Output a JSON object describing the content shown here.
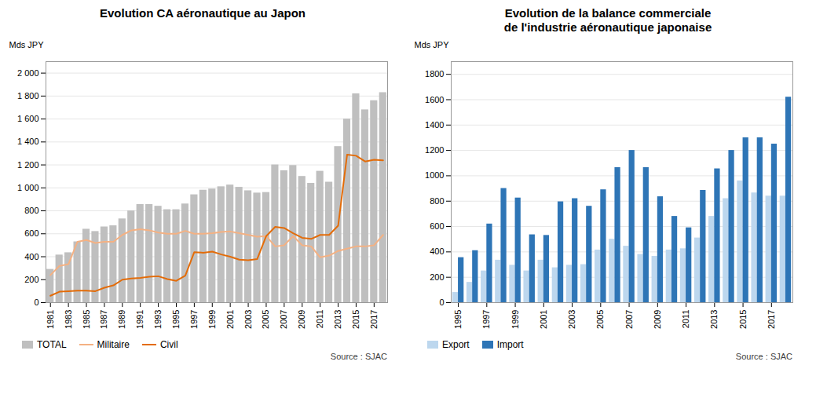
{
  "chart_data": [
    {
      "type": "bar",
      "title": "Evolution CA aéronautique au Japon",
      "ylabel": "Mds JPY",
      "source": "Source : SJAC",
      "categories": [
        "1981",
        null,
        "1983",
        null,
        "1985",
        null,
        "1987",
        null,
        "1989",
        null,
        "1991",
        null,
        "1993",
        null,
        "1995",
        null,
        "1997",
        null,
        "1999",
        null,
        "2001",
        null,
        "2003",
        null,
        "2005",
        null,
        "2007",
        null,
        "2009",
        null,
        "2011",
        null,
        "2013",
        null,
        "2015",
        null,
        "2017",
        null
      ],
      "series": [
        {
          "name": "TOTAL",
          "type": "bar",
          "color": "#bfbfbf",
          "values": [
            290,
            415,
            435,
            530,
            640,
            620,
            660,
            670,
            730,
            800,
            855,
            855,
            840,
            810,
            810,
            860,
            940,
            980,
            990,
            1010,
            1025,
            1005,
            975,
            955,
            960,
            1200,
            1150,
            1195,
            1100,
            1040,
            1145,
            1050,
            1360,
            1600,
            1820,
            1680,
            1760,
            1830
          ]
        },
        {
          "name": "Militaire",
          "type": "line",
          "color": "#f4b183",
          "values": [
            240,
            320,
            335,
            530,
            545,
            520,
            530,
            530,
            590,
            630,
            640,
            630,
            610,
            600,
            600,
            625,
            600,
            600,
            605,
            615,
            620,
            605,
            590,
            575,
            580,
            490,
            500,
            580,
            500,
            490,
            395,
            410,
            450,
            470,
            490,
            490,
            500,
            590
          ]
        },
        {
          "name": "Civil",
          "type": "line",
          "color": "#e36c09",
          "values": [
            60,
            95,
            100,
            105,
            105,
            100,
            130,
            150,
            200,
            210,
            215,
            225,
            230,
            205,
            190,
            235,
            440,
            435,
            445,
            420,
            400,
            375,
            370,
            380,
            580,
            660,
            650,
            605,
            565,
            555,
            590,
            590,
            670,
            1290,
            1280,
            1230,
            1245,
            1240
          ]
        }
      ],
      "ylim": [
        0,
        2100
      ],
      "yticks": [
        0,
        200,
        400,
        600,
        800,
        {
          "value": 1000,
          "label": "1 000"
        },
        {
          "value": 1200,
          "label": "1 200"
        },
        {
          "value": 1400,
          "label": "1 400"
        },
        {
          "value": 1600,
          "label": "1 600"
        },
        {
          "value": 1800,
          "label": "1 800"
        },
        {
          "value": 2000,
          "label": "2 000"
        }
      ],
      "grid": true,
      "legend": "bottom"
    },
    {
      "type": "bar",
      "title": "Evolution de la balance commerciale\nde l'industrie aéronautique japonaise",
      "ylabel": "Mds JPY",
      "source": "Source : SJAC",
      "categories": [
        "1995",
        null,
        "1997",
        null,
        "1999",
        null,
        "2001",
        null,
        "2003",
        null,
        "2005",
        null,
        "2007",
        null,
        "2009",
        null,
        "2011",
        null,
        "2013",
        null,
        "2015",
        null,
        "2017",
        null
      ],
      "series": [
        {
          "name": "Export",
          "type": "bar",
          "color": "#bdd7ee",
          "values": [
            80,
            160,
            250,
            335,
            295,
            250,
            335,
            275,
            295,
            300,
            415,
            500,
            445,
            380,
            365,
            415,
            425,
            510,
            680,
            820,
            960,
            865,
            840,
            840
          ]
        },
        {
          "name": "Import",
          "type": "bar",
          "color": "#2e75b6",
          "values": [
            355,
            410,
            620,
            900,
            825,
            535,
            530,
            795,
            820,
            760,
            890,
            1065,
            1200,
            1065,
            835,
            680,
            590,
            885,
            1055,
            1200,
            1300,
            1300,
            1250,
            1620
          ]
        }
      ],
      "ylim": [
        0,
        1900
      ],
      "yticks": [
        0,
        200,
        400,
        600,
        800,
        1000,
        1200,
        1400,
        1600,
        1800
      ],
      "grid": true,
      "legend": "bottom"
    }
  ]
}
